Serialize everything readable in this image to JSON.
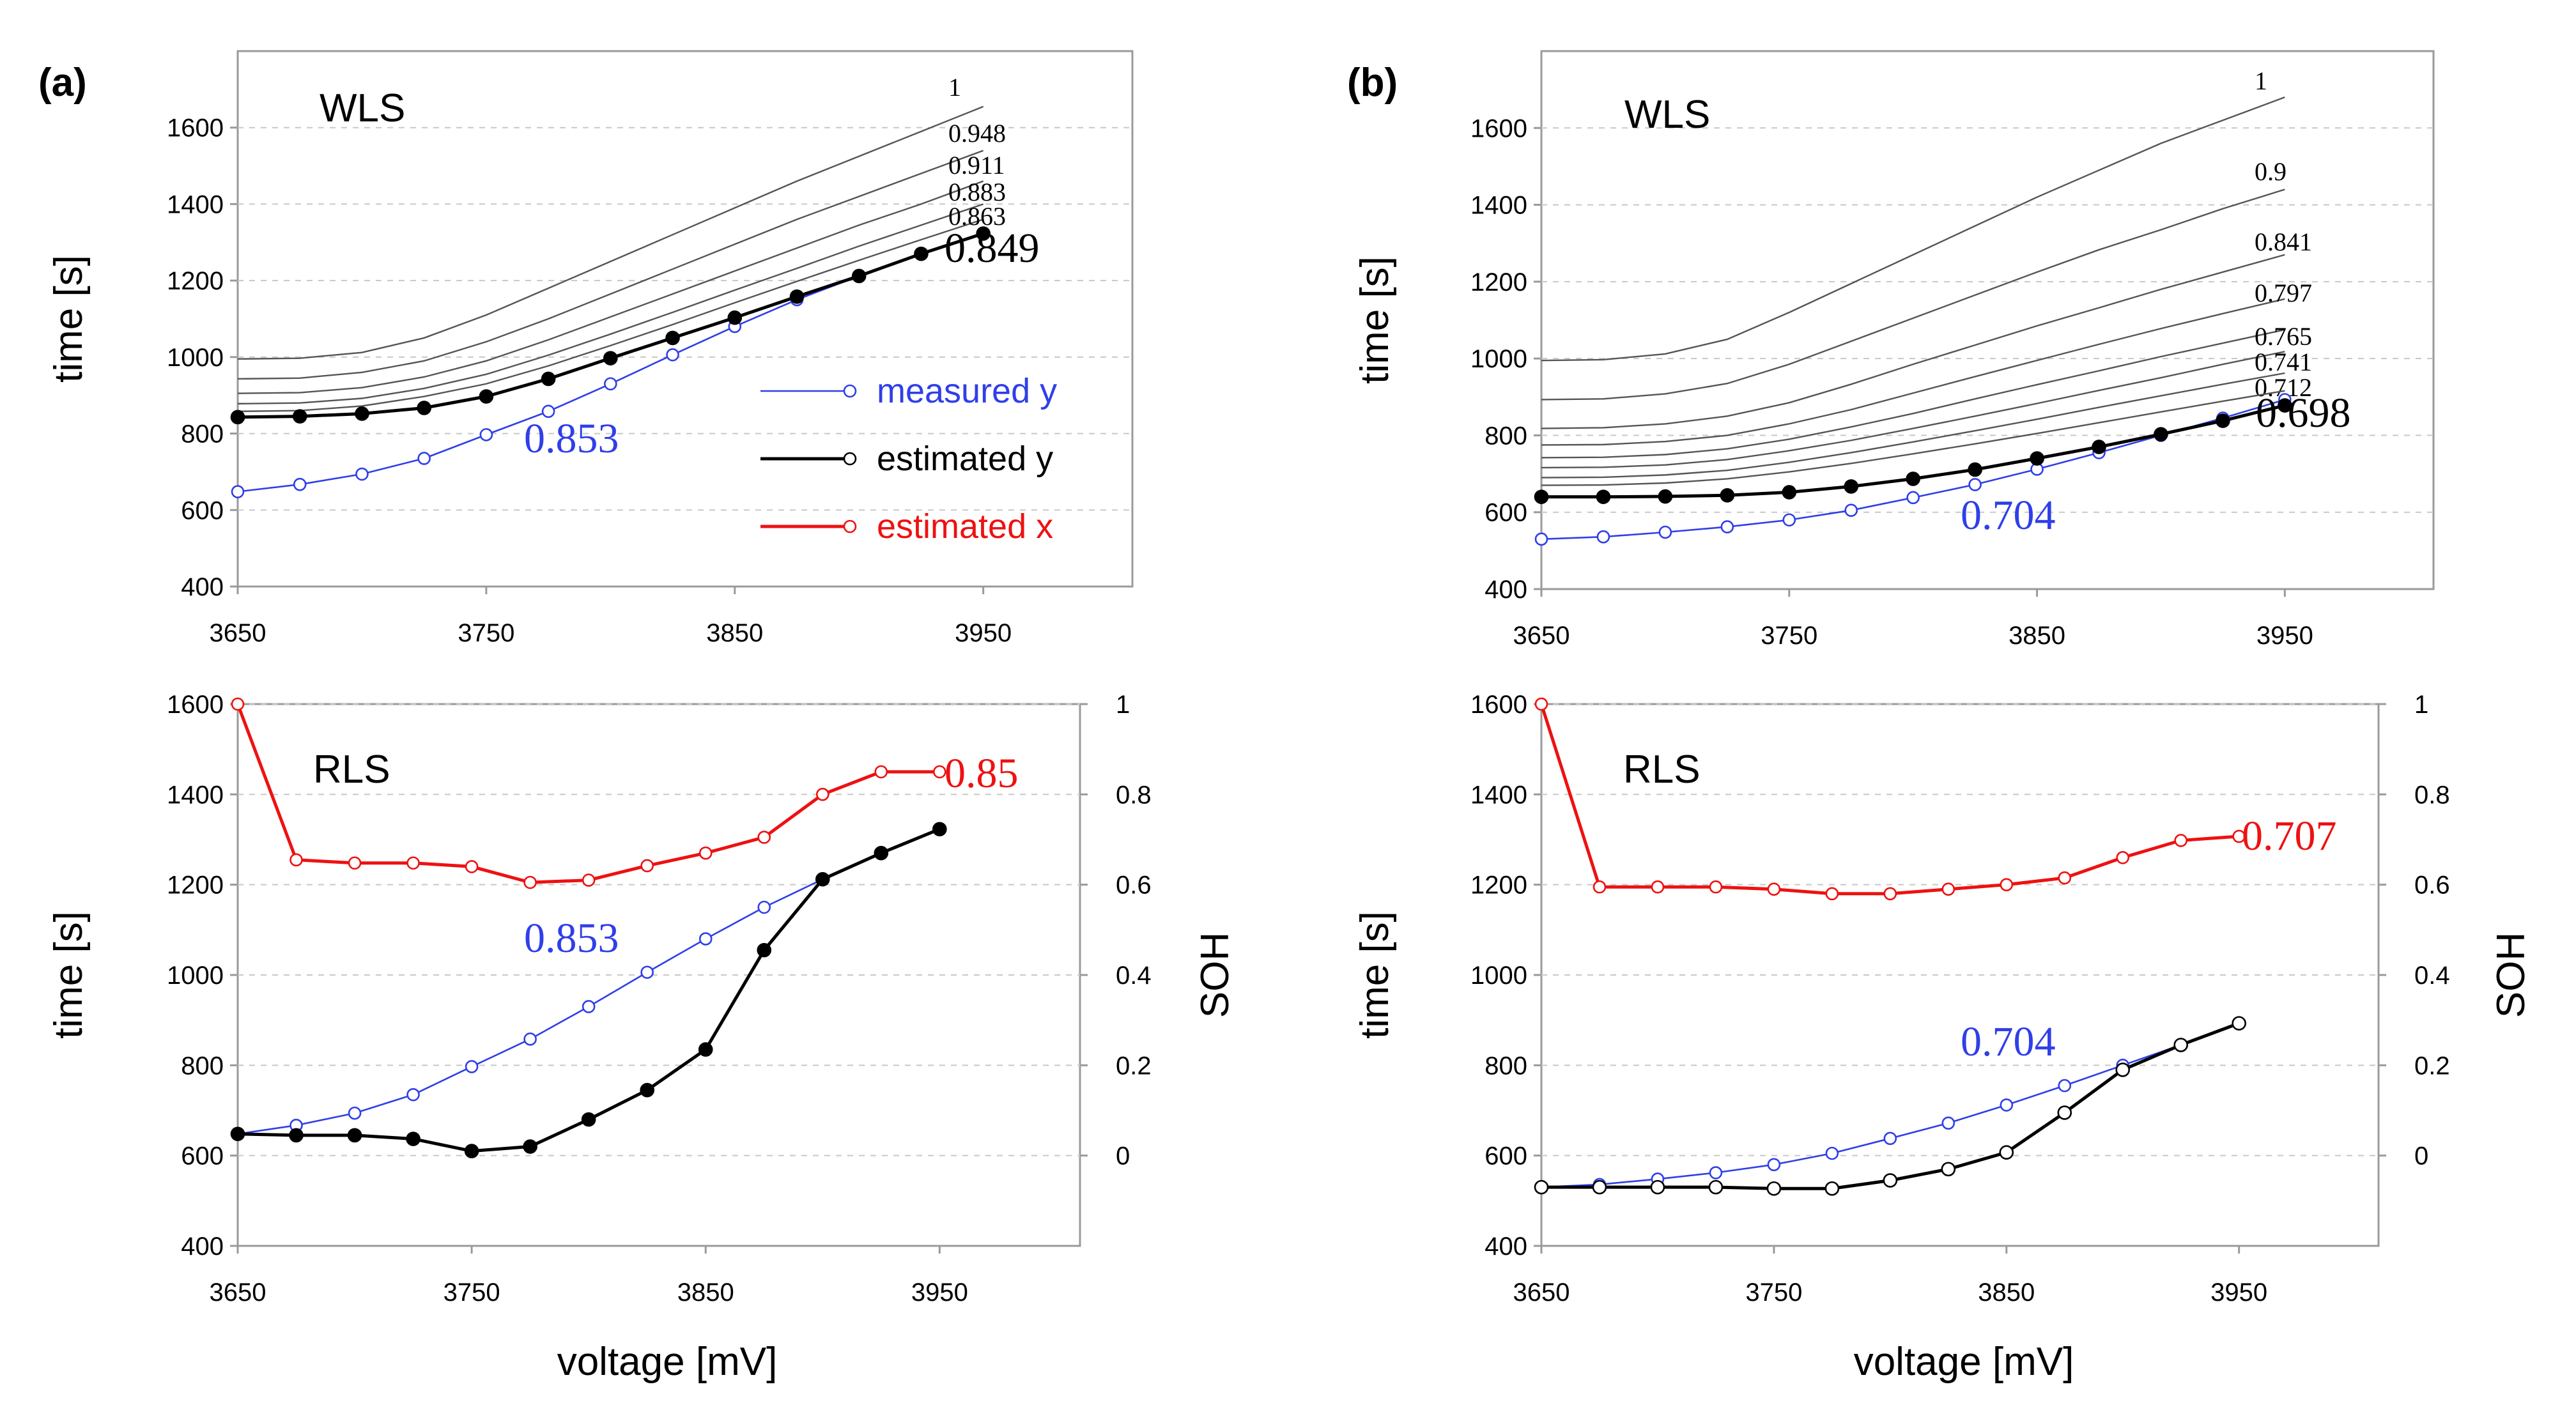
{
  "figure": {
    "xlabel": "voltage [mV]",
    "colors": {
      "measured": "#2f3fe8",
      "estimated_y": "#000000",
      "estimated_x": "#ee1111",
      "grid": "#c8c8c8",
      "ref": "#555555",
      "axis": "#9a9a9a"
    },
    "legend": [
      {
        "label": "measured y",
        "color": "#2f3fe8"
      },
      {
        "label": "estimated y",
        "color": "#000000"
      },
      {
        "label": "estimated x",
        "color": "#ee1111"
      }
    ]
  },
  "chart_data": [
    {
      "id": "a-top",
      "panel_tag": "(a)",
      "method": "WLS",
      "type": "line",
      "xlim": [
        3650,
        4010
      ],
      "ylim": [
        400,
        1800
      ],
      "xticks": [
        3650,
        3750,
        3850,
        3950
      ],
      "yticks": [
        400,
        600,
        800,
        1000,
        1200,
        1400,
        1600
      ],
      "ylabel": "time [s]",
      "x": [
        3650,
        3675,
        3700,
        3725,
        3750,
        3775,
        3800,
        3825,
        3850,
        3875,
        3900,
        3925,
        3950
      ],
      "reference_curves": [
        {
          "label": "1",
          "values": [
            995,
            997,
            1012,
            1050,
            1110,
            1180,
            1250,
            1320,
            1390,
            1460,
            1525,
            1590,
            1655
          ]
        },
        {
          "label": "0.948",
          "values": [
            943,
            945,
            960,
            990,
            1040,
            1100,
            1165,
            1230,
            1295,
            1360,
            1420,
            1480,
            1540
          ]
        },
        {
          "label": "0.911",
          "values": [
            905,
            907,
            920,
            948,
            990,
            1045,
            1105,
            1165,
            1225,
            1285,
            1345,
            1400,
            1460
          ]
        },
        {
          "label": "0.883",
          "values": [
            878,
            880,
            892,
            918,
            955,
            1005,
            1060,
            1117,
            1175,
            1232,
            1290,
            1345,
            1400
          ]
        },
        {
          "label": "0.863",
          "values": [
            858,
            860,
            872,
            897,
            930,
            977,
            1030,
            1085,
            1142,
            1198,
            1253,
            1307,
            1360
          ]
        }
      ],
      "series": [
        {
          "name": "measured y",
          "values": [
            648,
            667,
            694,
            735,
            797,
            858,
            930,
            1006,
            1080,
            1150,
            1212,
            1270,
            1323
          ]
        },
        {
          "name": "estimated y",
          "values": [
            843,
            845,
            852,
            867,
            897,
            943,
            997,
            1050,
            1103,
            1158,
            1212,
            1270,
            1323
          ]
        }
      ],
      "annotations": [
        {
          "text": "0.849",
          "color": "#000000"
        },
        {
          "text": "0.853",
          "color": "#2f3fe8"
        }
      ]
    },
    {
      "id": "a-bottom",
      "method": "RLS",
      "type": "line",
      "xlim": [
        3650,
        4010
      ],
      "ylim": [
        400,
        1600
      ],
      "xticks": [
        3650,
        3750,
        3850,
        3950
      ],
      "yticks": [
        400,
        600,
        800,
        1000,
        1200,
        1400,
        1600
      ],
      "y2lim": [
        -0.2,
        1.0
      ],
      "y2ticks": [
        0,
        0.2,
        0.4,
        0.6,
        0.8,
        1
      ],
      "ylabel": "time [s]",
      "y2label": "SOH",
      "x": [
        3650,
        3675,
        3700,
        3725,
        3750,
        3775,
        3800,
        3825,
        3850,
        3875,
        3900,
        3925,
        3950
      ],
      "series": [
        {
          "name": "measured y",
          "axis": "left",
          "values": [
            648,
            667,
            694,
            735,
            797,
            858,
            930,
            1006,
            1080,
            1150,
            1212,
            1270,
            1323
          ]
        },
        {
          "name": "estimated y",
          "axis": "left",
          "values": [
            648,
            645,
            645,
            637,
            610,
            620,
            680,
            745,
            835,
            1055,
            1212,
            1270,
            1323
          ]
        },
        {
          "name": "estimated x",
          "axis": "right",
          "values": [
            1.0,
            0.655,
            0.648,
            0.648,
            0.64,
            0.605,
            0.61,
            0.642,
            0.67,
            0.705,
            0.8,
            0.85,
            0.85
          ]
        }
      ],
      "annotations": [
        {
          "text": "0.85",
          "color": "#ee1111"
        },
        {
          "text": "0.853",
          "color": "#2f3fe8"
        }
      ]
    },
    {
      "id": "b-top",
      "panel_tag": "(b)",
      "method": "WLS",
      "type": "line",
      "xlim": [
        3650,
        4010
      ],
      "ylim": [
        400,
        1800
      ],
      "xticks": [
        3650,
        3750,
        3850,
        3950
      ],
      "yticks": [
        400,
        600,
        800,
        1000,
        1200,
        1400,
        1600
      ],
      "ylabel": "time [s]",
      "x": [
        3650,
        3675,
        3700,
        3725,
        3750,
        3775,
        3800,
        3825,
        3850,
        3875,
        3900,
        3925,
        3950
      ],
      "reference_curves": [
        {
          "label": "1",
          "values": [
            995,
            997,
            1012,
            1050,
            1120,
            1195,
            1270,
            1345,
            1420,
            1490,
            1560,
            1620,
            1680
          ]
        },
        {
          "label": "0.9",
          "values": [
            893,
            895,
            908,
            935,
            985,
            1045,
            1105,
            1165,
            1225,
            1283,
            1335,
            1390,
            1440
          ]
        },
        {
          "label": "0.841",
          "values": [
            818,
            820,
            830,
            850,
            885,
            933,
            985,
            1035,
            1085,
            1132,
            1180,
            1225,
            1270
          ]
        },
        {
          "label": "0.797",
          "values": [
            775,
            776,
            784,
            800,
            830,
            867,
            910,
            953,
            995,
            1037,
            1078,
            1117,
            1155
          ]
        },
        {
          "label": "0.765",
          "values": [
            742,
            743,
            750,
            765,
            790,
            822,
            857,
            895,
            932,
            968,
            1005,
            1040,
            1075
          ]
        },
        {
          "label": "0.741",
          "values": [
            716,
            717,
            723,
            737,
            760,
            787,
            818,
            850,
            883,
            917,
            950,
            985,
            1018
          ]
        },
        {
          "label": "0.712",
          "values": [
            690,
            691,
            697,
            709,
            730,
            755,
            783,
            812,
            842,
            873,
            903,
            933,
            962
          ]
        },
        {
          "label": "",
          "values": [
            670,
            671,
            676,
            687,
            705,
            727,
            752,
            778,
            805,
            833,
            861,
            889,
            916
          ]
        }
      ],
      "series": [
        {
          "name": "measured y",
          "values": [
            530,
            536,
            548,
            562,
            580,
            605,
            638,
            672,
            712,
            755,
            800,
            845,
            893
          ]
        },
        {
          "name": "estimated y",
          "values": [
            640,
            640,
            641,
            644,
            652,
            667,
            687,
            711,
            740,
            770,
            803,
            838,
            878
          ]
        }
      ],
      "annotations": [
        {
          "text": "0.698",
          "color": "#000000"
        },
        {
          "text": "0.704",
          "color": "#2f3fe8"
        }
      ]
    },
    {
      "id": "b-bottom",
      "method": "RLS",
      "type": "line",
      "xlim": [
        3650,
        4010
      ],
      "ylim": [
        400,
        1600
      ],
      "xticks": [
        3650,
        3750,
        3850,
        3950
      ],
      "yticks": [
        400,
        600,
        800,
        1000,
        1200,
        1400,
        1600
      ],
      "y2lim": [
        -0.2,
        1.0
      ],
      "y2ticks": [
        0,
        0.2,
        0.4,
        0.6,
        0.8,
        1
      ],
      "ylabel": "time [s]",
      "y2label": "SOH",
      "x": [
        3650,
        3675,
        3700,
        3725,
        3750,
        3775,
        3800,
        3825,
        3850,
        3875,
        3900,
        3925,
        3950
      ],
      "series": [
        {
          "name": "measured y",
          "axis": "left",
          "values": [
            530,
            536,
            548,
            562,
            580,
            605,
            638,
            672,
            712,
            755,
            800,
            845,
            893
          ]
        },
        {
          "name": "estimated y",
          "axis": "left",
          "values": [
            530,
            530,
            530,
            530,
            527,
            527,
            545,
            570,
            607,
            695,
            790,
            845,
            893
          ]
        },
        {
          "name": "estimated x",
          "axis": "right",
          "values": [
            1.0,
            0.595,
            0.595,
            0.595,
            0.59,
            0.58,
            0.58,
            0.59,
            0.6,
            0.615,
            0.66,
            0.698,
            0.707
          ]
        }
      ],
      "annotations": [
        {
          "text": "0.707",
          "color": "#ee1111"
        },
        {
          "text": "0.704",
          "color": "#2f3fe8"
        }
      ]
    }
  ]
}
